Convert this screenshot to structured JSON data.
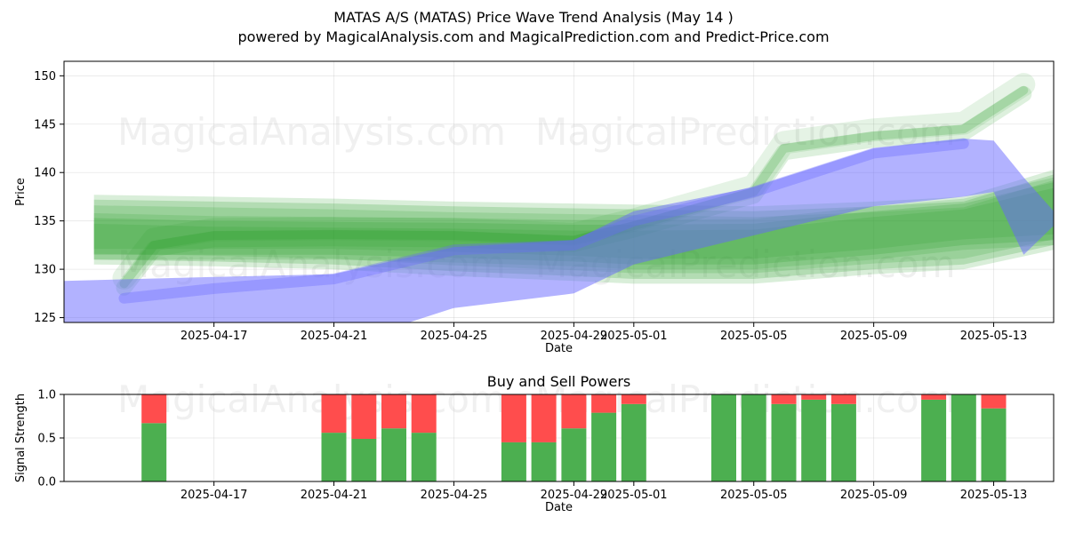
{
  "title_line1": "MATAS A/S (MATAS) Price Wave Trend Analysis (May 14 )",
  "title_line2": "powered by MagicalAnalysis.com and MagicalPrediction.com and Predict-Price.com",
  "watermarks": [
    "MagicalAnalysis.com",
    "MagicalPrediction.com"
  ],
  "colors": {
    "green_band": "#2ca02c",
    "blue_band": "#6666ff",
    "buy": "#4caf50",
    "sell": "#ff4d4d"
  },
  "chart_data": [
    {
      "type": "area",
      "xlabel": "Date",
      "ylabel": "Price",
      "x_range": [
        "2025-04-12",
        "2025-05-15"
      ],
      "ylim": [
        124.5,
        151.5
      ],
      "x_ticks": [
        "2025-04-17",
        "2025-04-21",
        "2025-04-25",
        "2025-04-29",
        "2025-05-01",
        "2025-05-05",
        "2025-05-09",
        "2025-05-13"
      ],
      "y_ticks": [
        125,
        130,
        135,
        140,
        145,
        150
      ],
      "grid": true,
      "series": [
        {
          "color": "green",
          "kind": "band",
          "points": [
            {
              "x": "2025-04-13",
              "low": 131.0,
              "high": 137.2
            },
            {
              "x": "2025-04-17",
              "low": 130.8,
              "high": 137.0
            },
            {
              "x": "2025-04-21",
              "low": 130.5,
              "high": 136.8
            },
            {
              "x": "2025-04-25",
              "low": 129.8,
              "high": 136.5
            },
            {
              "x": "2025-04-29",
              "low": 129.3,
              "high": 136.3
            },
            {
              "x": "2025-05-01",
              "low": 129.0,
              "high": 136.2
            },
            {
              "x": "2025-05-05",
              "low": 129.0,
              "high": 136.0
            },
            {
              "x": "2025-05-09",
              "low": 130.0,
              "high": 136.5
            },
            {
              "x": "2025-05-12",
              "low": 130.5,
              "high": 137.0
            },
            {
              "x": "2025-05-15",
              "low": 132.5,
              "high": 139.8
            }
          ]
        },
        {
          "color": "green",
          "kind": "band",
          "points": [
            {
              "x": "2025-04-13",
              "low": 131.5,
              "high": 135.3
            },
            {
              "x": "2025-04-17",
              "low": 131.5,
              "high": 135.0
            },
            {
              "x": "2025-04-21",
              "low": 131.5,
              "high": 134.9
            },
            {
              "x": "2025-04-25",
              "low": 131.2,
              "high": 134.8
            },
            {
              "x": "2025-04-29",
              "low": 130.8,
              "high": 134.6
            },
            {
              "x": "2025-05-01",
              "low": 130.5,
              "high": 134.6
            },
            {
              "x": "2025-05-05",
              "low": 130.5,
              "high": 134.7
            },
            {
              "x": "2025-05-09",
              "low": 131.5,
              "high": 136.0
            },
            {
              "x": "2025-05-12",
              "low": 132.5,
              "high": 136.8
            },
            {
              "x": "2025-05-15",
              "low": 133.0,
              "high": 139.0
            }
          ]
        },
        {
          "color": "green",
          "kind": "line",
          "points": [
            {
              "x": "2025-04-14",
              "y": 128.5
            },
            {
              "x": "2025-04-15",
              "y": 132.5
            },
            {
              "x": "2025-04-17",
              "y": 133.5
            },
            {
              "x": "2025-04-21",
              "y": 133.6
            },
            {
              "x": "2025-04-25",
              "y": 133.5
            },
            {
              "x": "2025-04-29",
              "y": 133.0
            },
            {
              "x": "2025-05-01",
              "y": 134.5
            },
            {
              "x": "2025-05-05",
              "y": 138.0
            },
            {
              "x": "2025-05-06",
              "y": 142.5
            },
            {
              "x": "2025-05-09",
              "y": 143.8
            },
            {
              "x": "2025-05-12",
              "y": 144.5
            },
            {
              "x": "2025-05-14",
              "y": 148.5
            }
          ]
        },
        {
          "color": "blue",
          "kind": "band",
          "points": [
            {
              "x": "2025-04-12",
              "low": 121.0,
              "high": 128.8
            },
            {
              "x": "2025-04-17",
              "low": 121.0,
              "high": 129.2
            },
            {
              "x": "2025-04-21",
              "low": 122.0,
              "high": 129.5
            },
            {
              "x": "2025-04-25",
              "low": 126.0,
              "high": 132.3
            },
            {
              "x": "2025-04-29",
              "low": 127.5,
              "high": 133.0
            },
            {
              "x": "2025-05-01",
              "low": 130.5,
              "high": 136.0
            },
            {
              "x": "2025-05-05",
              "low": 133.5,
              "high": 138.5
            },
            {
              "x": "2025-05-09",
              "low": 136.5,
              "high": 142.5
            },
            {
              "x": "2025-05-12",
              "low": 137.5,
              "high": 143.5
            },
            {
              "x": "2025-05-13",
              "low": 138.0,
              "high": 143.3
            },
            {
              "x": "2025-05-14",
              "low": 131.5,
              "high": 139.5
            },
            {
              "x": "2025-05-15",
              "low": 134.5,
              "high": 136.0
            }
          ]
        },
        {
          "color": "blue",
          "kind": "line",
          "points": [
            {
              "x": "2025-04-14",
              "y": 127.0
            },
            {
              "x": "2025-04-17",
              "y": 128.0
            },
            {
              "x": "2025-04-21",
              "y": 129.0
            },
            {
              "x": "2025-04-25",
              "y": 132.0
            },
            {
              "x": "2025-04-29",
              "y": 132.5
            },
            {
              "x": "2025-05-01",
              "y": 135.0
            },
            {
              "x": "2025-05-05",
              "y": 138.0
            },
            {
              "x": "2025-05-09",
              "y": 142.0
            },
            {
              "x": "2025-05-12",
              "y": 143.0
            }
          ]
        }
      ]
    },
    {
      "type": "bar",
      "title": "Buy and Sell Powers",
      "xlabel": "Date",
      "ylabel": "Signal Strength",
      "x_range": [
        "2025-04-12",
        "2025-05-15"
      ],
      "ylim": [
        0,
        1.0
      ],
      "y_ticks": [
        0.0,
        0.5,
        1.0
      ],
      "x_ticks": [
        "2025-04-17",
        "2025-04-21",
        "2025-04-25",
        "2025-04-29",
        "2025-05-01",
        "2025-05-05",
        "2025-05-09",
        "2025-05-13"
      ],
      "grid": true,
      "stacked": true,
      "categories": [
        "2025-04-15",
        "2025-04-21",
        "2025-04-22",
        "2025-04-23",
        "2025-04-24",
        "2025-04-27",
        "2025-04-28",
        "2025-04-29",
        "2025-04-30",
        "2025-05-01",
        "2025-05-04",
        "2025-05-05",
        "2025-05-06",
        "2025-05-07",
        "2025-05-08",
        "2025-05-11",
        "2025-05-12",
        "2025-05-13"
      ],
      "series": [
        {
          "color": "buy",
          "values": [
            0.67,
            0.56,
            0.49,
            0.61,
            0.56,
            0.45,
            0.45,
            0.61,
            0.79,
            0.89,
            1.0,
            1.0,
            0.89,
            0.94,
            0.89,
            0.94,
            1.0,
            0.84
          ]
        },
        {
          "color": "sell",
          "values": [
            0.33,
            0.44,
            0.51,
            0.39,
            0.44,
            0.55,
            0.55,
            0.39,
            0.21,
            0.11,
            0.0,
            0.0,
            0.11,
            0.06,
            0.11,
            0.06,
            0.0,
            0.16
          ]
        }
      ]
    }
  ]
}
